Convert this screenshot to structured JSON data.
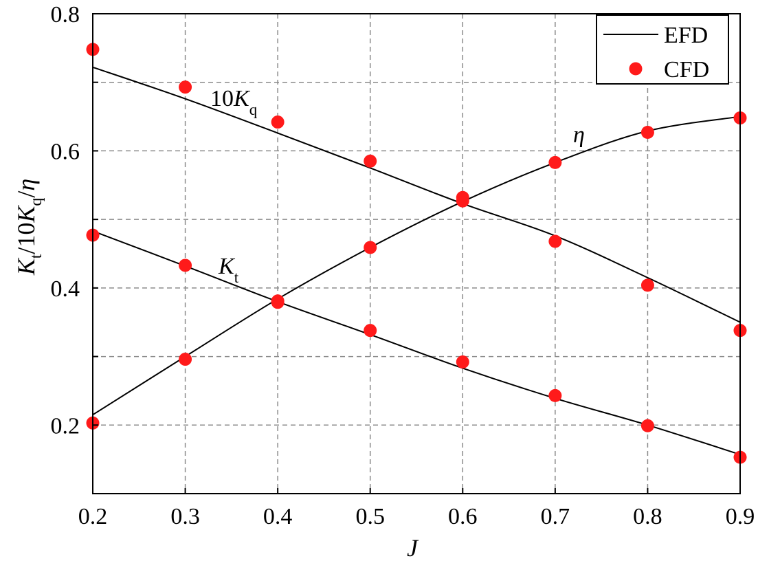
{
  "chart_data": {
    "type": "line",
    "xlabel": "J",
    "ylabel": {
      "k": "K",
      "k_sub": "t",
      "sep": "/10",
      "k2": "K",
      "k2_sub": "q",
      "sep2": "/",
      "eta": "η"
    },
    "xlim": [
      0.2,
      0.9
    ],
    "ylim": [
      0.1,
      0.8
    ],
    "x_ticks": [
      "0.2",
      "0.3",
      "0.4",
      "0.5",
      "0.6",
      "0.7",
      "0.8",
      "0.9"
    ],
    "y_ticks": [
      "0.2",
      "0.4",
      "0.6",
      "0.8"
    ],
    "grid": true,
    "legend_position": "top-right",
    "legend": [
      "EFD",
      "CFD"
    ],
    "colors": {
      "efd": "#000000",
      "cfd": "#ff1a1a",
      "grid": "#8a8a8a"
    },
    "x": [
      0.2,
      0.3,
      0.4,
      0.5,
      0.6,
      0.7,
      0.8,
      0.9
    ],
    "series": [
      {
        "label_main": "K",
        "label_sub": "t",
        "efd": [
          0.483,
          0.432,
          0.38,
          0.332,
          0.283,
          0.239,
          0.2,
          0.157
        ],
        "cfd": [
          0.477,
          0.433,
          0.381,
          0.338,
          0.292,
          0.243,
          0.199,
          0.153
        ]
      },
      {
        "label_prefix": "10",
        "label_main": "K",
        "label_sub": "q",
        "efd": [
          0.722,
          0.676,
          0.626,
          0.575,
          0.523,
          0.476,
          0.415,
          0.35
        ],
        "cfd": [
          0.748,
          0.693,
          0.642,
          0.585,
          0.532,
          0.468,
          0.404,
          0.338
        ]
      },
      {
        "label_main": "η",
        "efd": [
          0.215,
          0.3,
          0.384,
          0.459,
          0.526,
          0.583,
          0.629,
          0.65
        ],
        "cfd": [
          0.203,
          0.296,
          0.379,
          0.459,
          0.527,
          0.583,
          0.627,
          0.648
        ]
      }
    ]
  }
}
